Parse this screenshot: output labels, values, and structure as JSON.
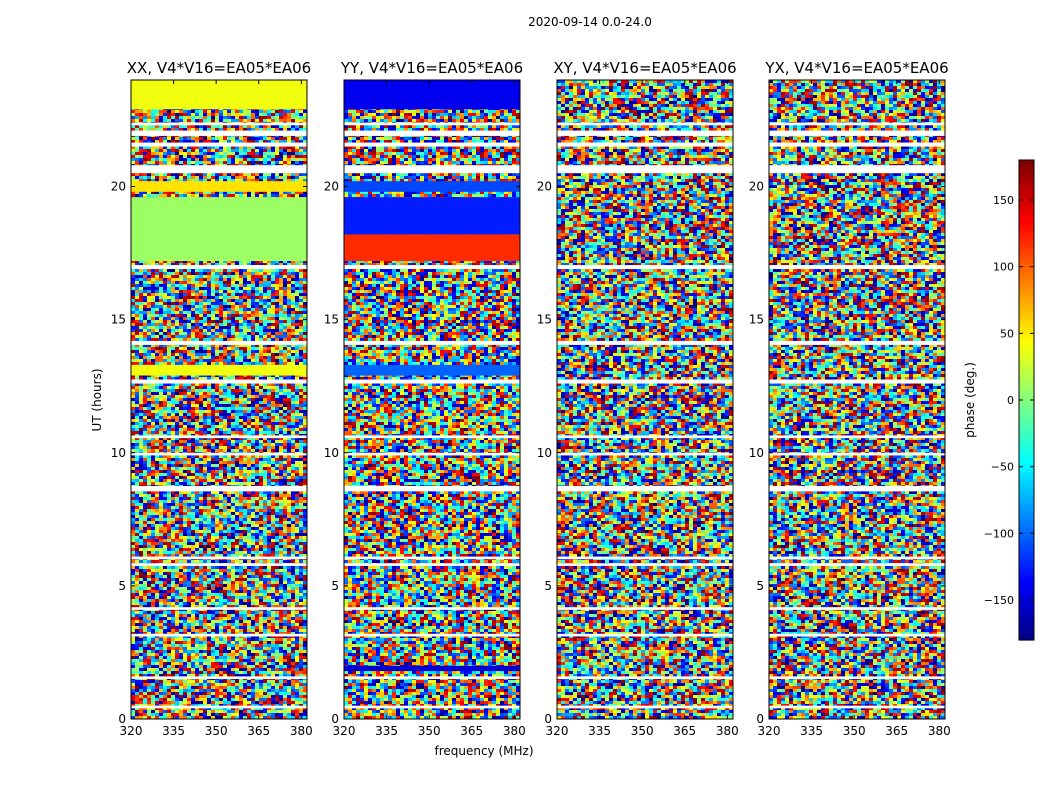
{
  "chart_data": {
    "type": "heatmap",
    "suptitle": "2020-09-14 0.0-24.0",
    "xlabel": "frequency (MHz)",
    "ylabel": "UT (hours)",
    "xlim": [
      320,
      382
    ],
    "ylim": [
      0,
      24
    ],
    "xticks": [
      320,
      335,
      350,
      365,
      380
    ],
    "yticks": [
      0,
      5,
      10,
      15,
      20
    ],
    "panels": [
      {
        "title": "XX, V4*V16=EA05*EA06",
        "coherent_bands": [
          {
            "t0": 22.9,
            "t1": 24.0,
            "phase": 40
          },
          {
            "t0": 19.8,
            "t1": 20.2,
            "phase": 55
          },
          {
            "t0": 17.2,
            "t1": 19.6,
            "phase": 10
          },
          {
            "t0": 12.9,
            "t1": 13.3,
            "phase": 40
          }
        ]
      },
      {
        "title": "YY, V4*V16=EA05*EA06",
        "coherent_bands": [
          {
            "t0": 22.9,
            "t1": 24.0,
            "phase": -140
          },
          {
            "t0": 19.8,
            "t1": 20.2,
            "phase": -110
          },
          {
            "t0": 18.2,
            "t1": 19.6,
            "phase": -125
          },
          {
            "t0": 17.2,
            "t1": 18.2,
            "phase": 120
          },
          {
            "t0": 12.9,
            "t1": 13.3,
            "phase": -100
          },
          {
            "t0": 1.8,
            "t1": 2.0,
            "phase": -150
          }
        ]
      },
      {
        "title": "XY, V4*V16=EA05*EA06",
        "coherent_bands": []
      },
      {
        "title": "YX, V4*V16=EA05*EA06",
        "coherent_bands": []
      }
    ],
    "flagged_gaps_hours": [
      [
        21.5,
        21.65
      ],
      [
        21.9,
        22.1
      ],
      [
        22.3,
        22.4
      ],
      [
        20.5,
        20.8
      ],
      [
        16.9,
        17.05
      ],
      [
        14.05,
        14.2
      ],
      [
        12.6,
        12.75
      ],
      [
        10.55,
        10.65
      ],
      [
        9.9,
        10.0
      ],
      [
        8.55,
        8.75
      ],
      [
        6.0,
        6.1
      ],
      [
        5.75,
        5.85
      ],
      [
        4.1,
        4.2
      ],
      [
        3.1,
        3.2
      ],
      [
        1.5,
        1.6
      ],
      [
        0.4,
        0.5
      ]
    ],
    "colorbar": {
      "label": "phase (deg.)",
      "range": [
        -180,
        180
      ],
      "ticks": [
        150,
        100,
        50,
        0,
        -50,
        -100,
        -150
      ],
      "tick_labels": [
        "150",
        "100",
        "50",
        "0",
        "−50",
        "−100",
        "−150"
      ],
      "colormap": "jet"
    }
  }
}
